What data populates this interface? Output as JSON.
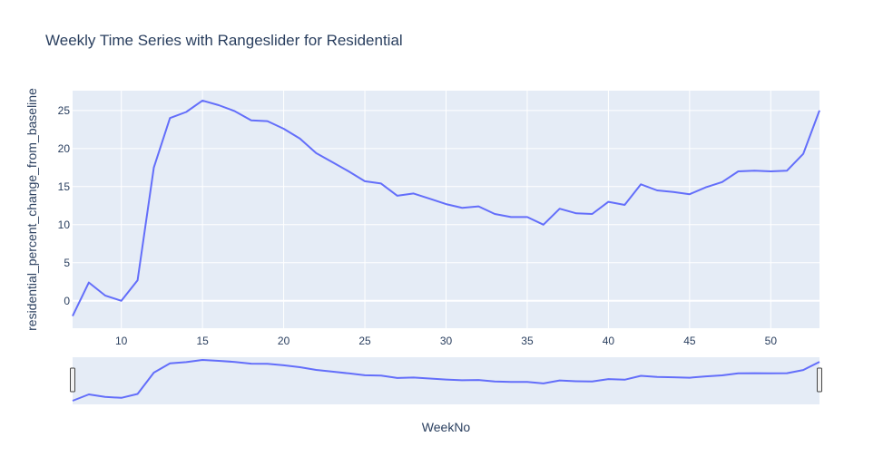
{
  "chart_data": {
    "type": "line",
    "title": "Weekly Time Series with Rangeslider for Residential",
    "xlabel": "WeekNo",
    "ylabel": "residential_percent_change_from_baseline",
    "xlim": [
      7,
      53
    ],
    "ylim": [
      -3.6,
      27.6
    ],
    "xticks": [
      10,
      15,
      20,
      25,
      30,
      35,
      40,
      45,
      50
    ],
    "yticks": [
      0,
      5,
      10,
      15,
      20,
      25
    ],
    "grid": true,
    "rangeslider": true,
    "line_color": "#636efa",
    "plot_bg": "#e5ecf6",
    "series": [
      {
        "x": [
          7,
          8,
          9,
          10,
          11,
          12,
          13,
          14,
          15,
          16,
          17,
          18,
          19,
          20,
          21,
          22,
          23,
          24,
          25,
          26,
          27,
          28,
          29,
          30,
          31,
          32,
          33,
          34,
          35,
          36,
          37,
          38,
          39,
          40,
          41,
          42,
          43,
          44,
          45,
          46,
          47,
          48,
          49,
          50,
          51,
          52,
          53
        ],
        "values": [
          -2.0,
          2.4,
          0.7,
          0.0,
          2.7,
          17.5,
          24.0,
          24.8,
          26.3,
          25.7,
          24.9,
          23.7,
          23.6,
          22.6,
          21.3,
          19.4,
          18.2,
          17.0,
          15.7,
          15.4,
          13.8,
          14.1,
          13.4,
          12.7,
          12.2,
          12.4,
          11.4,
          11.0,
          11.0,
          10.0,
          12.1,
          11.5,
          11.4,
          13.0,
          12.6,
          15.3,
          14.5,
          14.3,
          14.0,
          14.9,
          15.6,
          17.0,
          17.1,
          17.0,
          17.1,
          19.3,
          25.0
        ]
      }
    ]
  }
}
